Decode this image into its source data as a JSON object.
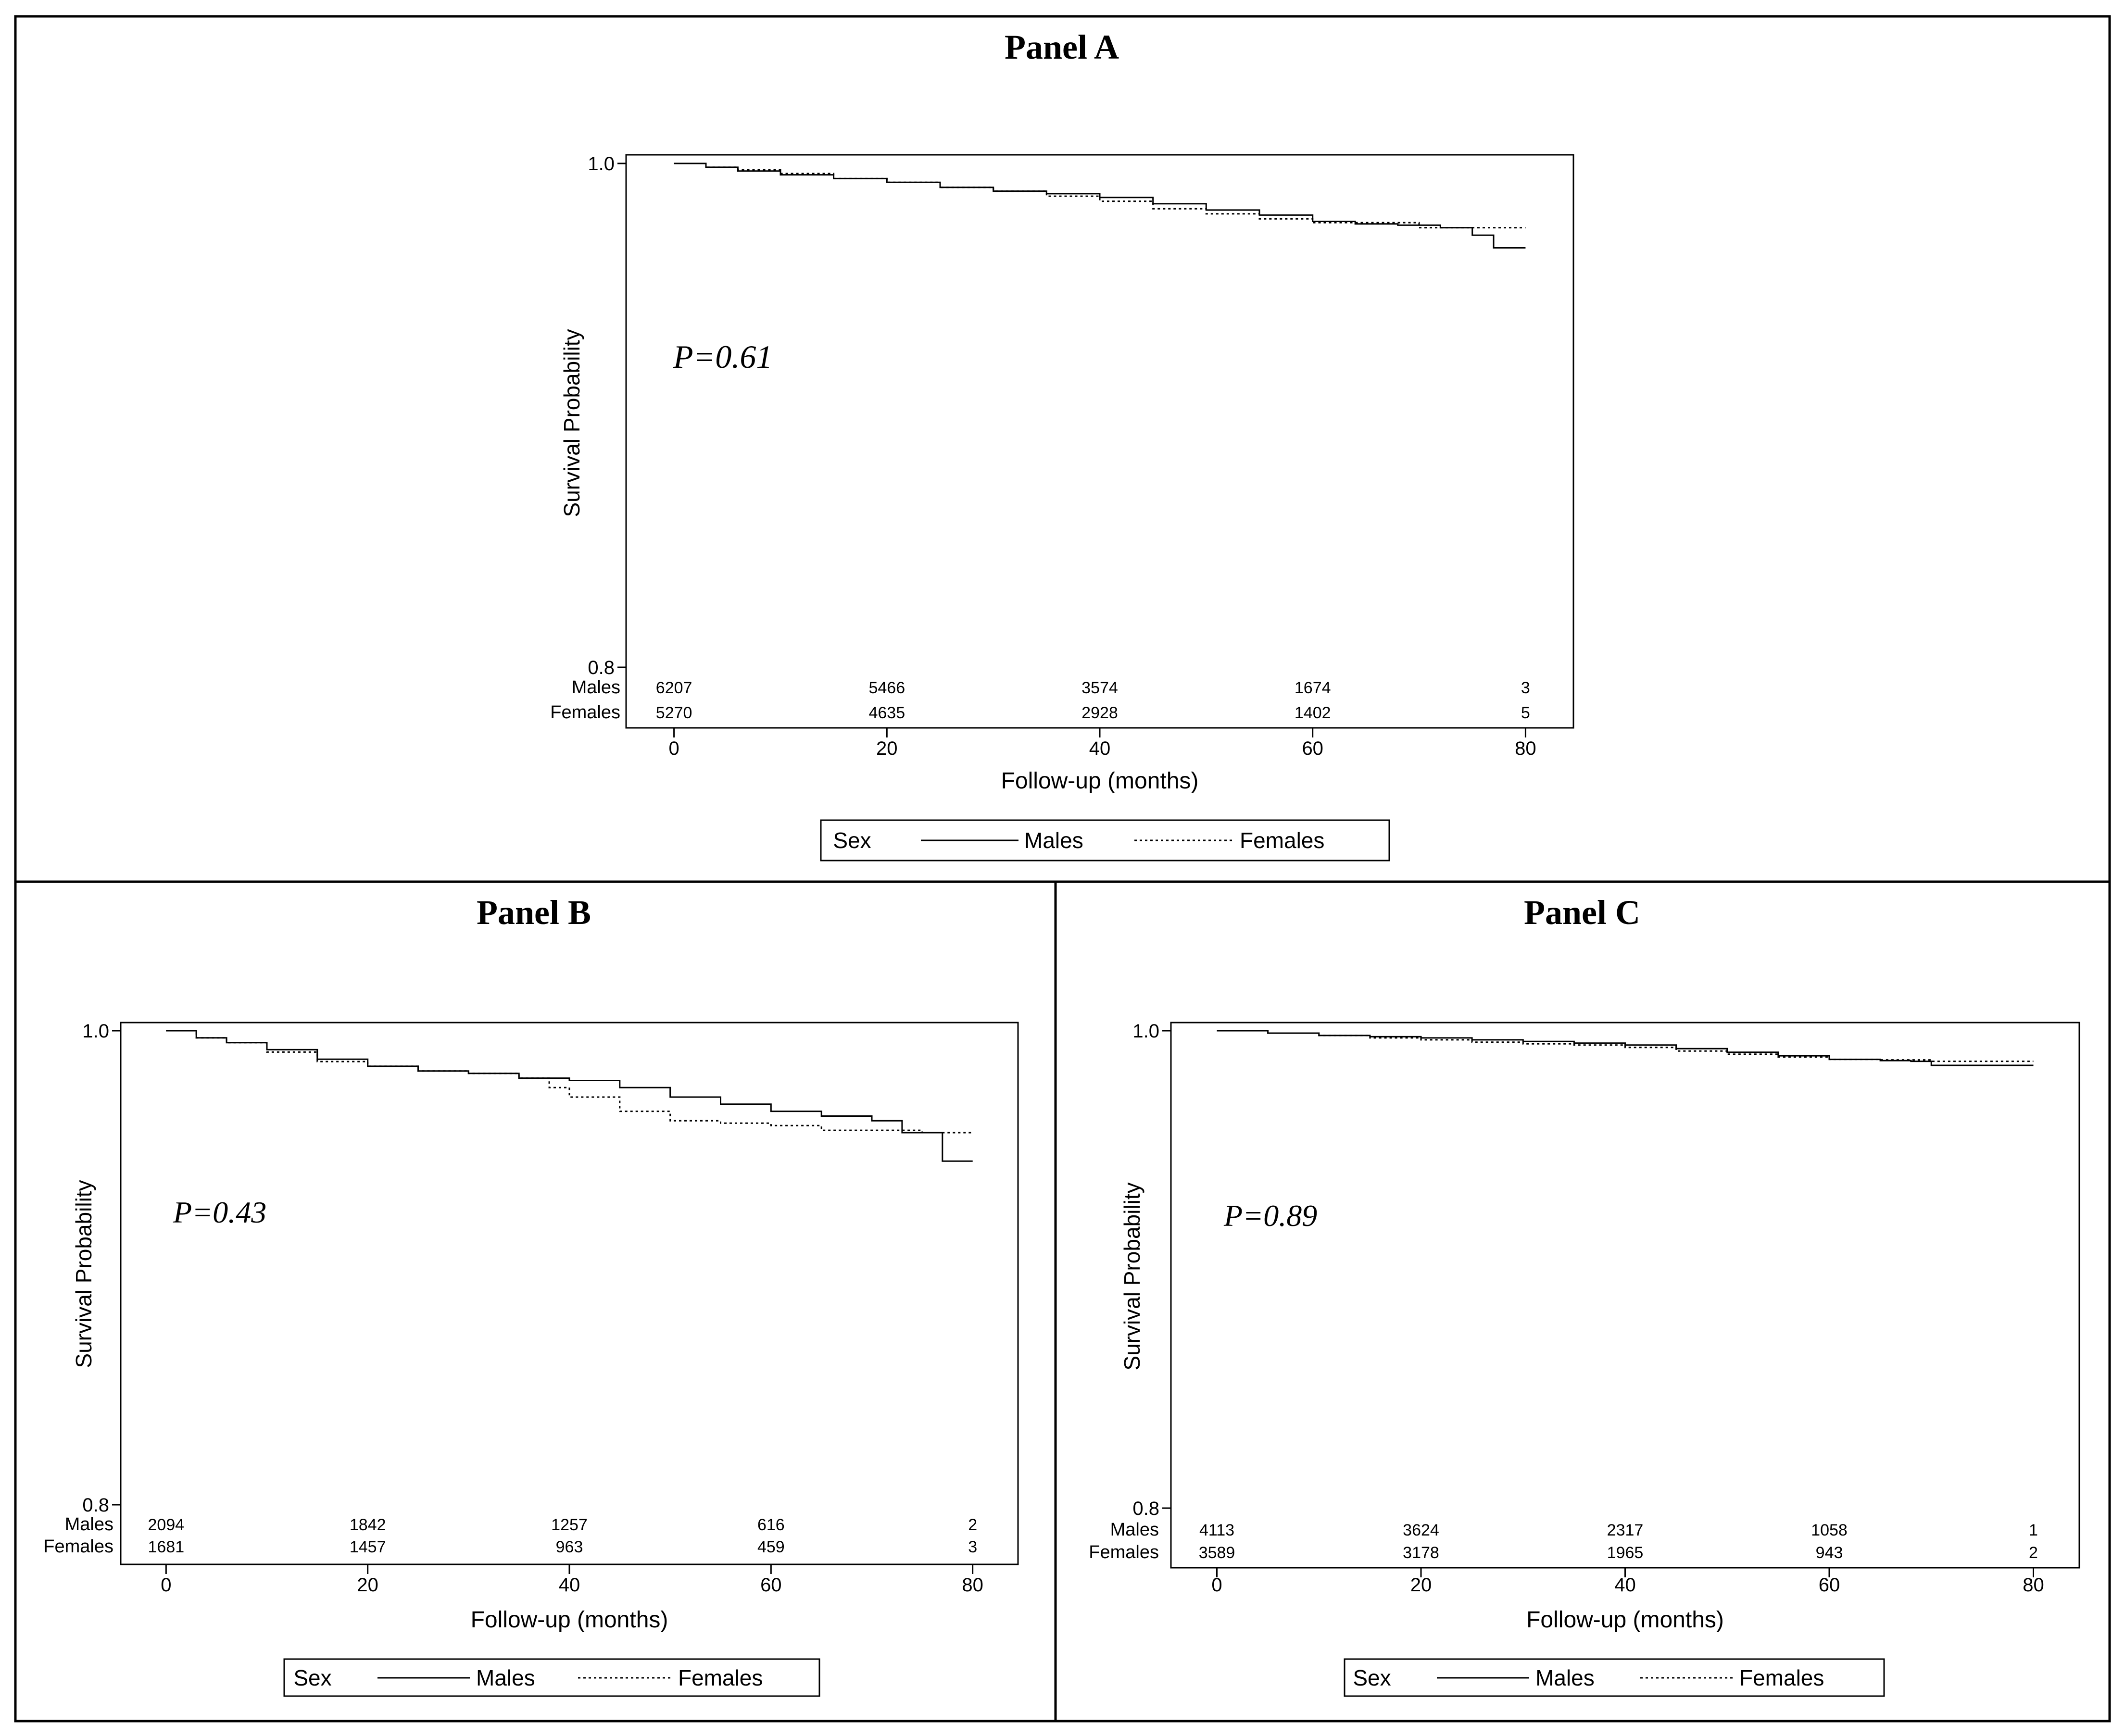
{
  "chart_data": [
    {
      "type": "line",
      "title": "Panel A",
      "xlabel": "Follow-up (months)",
      "ylabel": "Survival Probability",
      "xlim": [
        -4.5,
        84.5
      ],
      "ylim": [
        0.8,
        1.0
      ],
      "x_ticks": [
        0,
        20,
        40,
        60,
        80
      ],
      "x_tick_labels": [
        "0",
        "20",
        "40",
        "60",
        "80"
      ],
      "y_ticks": [
        0.8,
        1.0
      ],
      "y_tick_labels": [
        "0.8",
        "1.0"
      ],
      "annotation": "P=0.61",
      "grid": false,
      "legend": {
        "title": "Sex",
        "placement": "bottom",
        "entries": [
          "Males",
          "Females"
        ]
      },
      "risk_table": {
        "times": [
          0,
          20,
          40,
          60,
          80
        ],
        "rows": [
          {
            "label": "Males",
            "values": [
              "6207",
              "5466",
              "3574",
              "1674",
              "3"
            ]
          },
          {
            "label": "Females",
            "values": [
              "5270",
              "4635",
              "2928",
              "1402",
              "5"
            ]
          }
        ]
      },
      "series": [
        {
          "name": "Males",
          "style": "solid",
          "points": [
            [
              0,
              1.0
            ],
            [
              3,
              0.9985
            ],
            [
              6,
              0.997
            ],
            [
              10,
              0.9955
            ],
            [
              15,
              0.994
            ],
            [
              20,
              0.9925
            ],
            [
              25,
              0.9905
            ],
            [
              30,
              0.989
            ],
            [
              35,
              0.988
            ],
            [
              40,
              0.9865
            ],
            [
              45,
              0.984
            ],
            [
              50,
              0.9815
            ],
            [
              55,
              0.9795
            ],
            [
              60,
              0.977
            ],
            [
              64,
              0.976
            ],
            [
              68,
              0.9755
            ],
            [
              72,
              0.9745
            ],
            [
              75,
              0.9715
            ],
            [
              77,
              0.9715
            ],
            [
              77,
              0.9665
            ],
            [
              80,
              0.9665
            ]
          ]
        },
        {
          "name": "Females",
          "style": "dotted",
          "points": [
            [
              0,
              1.0
            ],
            [
              3,
              0.9985
            ],
            [
              6,
              0.9975
            ],
            [
              10,
              0.996
            ],
            [
              15,
              0.994
            ],
            [
              20,
              0.9925
            ],
            [
              25,
              0.9905
            ],
            [
              30,
              0.989
            ],
            [
              35,
              0.987
            ],
            [
              40,
              0.985
            ],
            [
              45,
              0.982
            ],
            [
              50,
              0.98
            ],
            [
              55,
              0.978
            ],
            [
              60,
              0.9765
            ],
            [
              65,
              0.9765
            ],
            [
              70,
              0.9745
            ],
            [
              75,
              0.9745
            ],
            [
              80,
              0.9745
            ]
          ]
        }
      ]
    },
    {
      "type": "line",
      "title": "Panel B",
      "xlabel": "Follow-up (months)",
      "ylabel": "Survival Probability",
      "xlim": [
        -4.5,
        84.5
      ],
      "ylim": [
        0.8,
        1.0
      ],
      "x_ticks": [
        0,
        20,
        40,
        60,
        80
      ],
      "x_tick_labels": [
        "0",
        "20",
        "40",
        "60",
        "80"
      ],
      "y_ticks": [
        0.8,
        1.0
      ],
      "y_tick_labels": [
        "0.8",
        "1.0"
      ],
      "annotation": "P=0.43",
      "grid": false,
      "legend": {
        "title": "Sex",
        "placement": "bottom",
        "entries": [
          "Males",
          "Females"
        ]
      },
      "risk_table": {
        "times": [
          0,
          20,
          40,
          60,
          80
        ],
        "rows": [
          {
            "label": "Males",
            "values": [
              "2094",
              "1842",
              "1257",
              "616",
              "2"
            ]
          },
          {
            "label": "Females",
            "values": [
              "1681",
              "1457",
              "963",
              "459",
              "3"
            ]
          }
        ]
      },
      "series": [
        {
          "name": "Males",
          "style": "solid",
          "points": [
            [
              0,
              1.0
            ],
            [
              3,
              0.997
            ],
            [
              6,
              0.995
            ],
            [
              10,
              0.992
            ],
            [
              15,
              0.988
            ],
            [
              20,
              0.985
            ],
            [
              25,
              0.983
            ],
            [
              30,
              0.982
            ],
            [
              35,
              0.98
            ],
            [
              40,
              0.979
            ],
            [
              45,
              0.976
            ],
            [
              50,
              0.972
            ],
            [
              55,
              0.969
            ],
            [
              60,
              0.966
            ],
            [
              65,
              0.964
            ],
            [
              70,
              0.962
            ],
            [
              72,
              0.962
            ],
            [
              73,
              0.957
            ],
            [
              77,
              0.957
            ],
            [
              77,
              0.945
            ],
            [
              80,
              0.945
            ]
          ]
        },
        {
          "name": "Females",
          "style": "dotted",
          "points": [
            [
              0,
              1.0
            ],
            [
              3,
              0.997
            ],
            [
              6,
              0.995
            ],
            [
              10,
              0.991
            ],
            [
              15,
              0.987
            ],
            [
              20,
              0.985
            ],
            [
              25,
              0.983
            ],
            [
              30,
              0.982
            ],
            [
              35,
              0.98
            ],
            [
              38,
              0.976
            ],
            [
              40,
              0.972
            ],
            [
              45,
              0.966
            ],
            [
              50,
              0.962
            ],
            [
              55,
              0.961
            ],
            [
              60,
              0.96
            ],
            [
              65,
              0.958
            ],
            [
              70,
              0.958
            ],
            [
              75,
              0.957
            ],
            [
              80,
              0.957
            ]
          ]
        }
      ]
    },
    {
      "type": "line",
      "title": "Panel C",
      "xlabel": "Follow-up (months)",
      "ylabel": "Survival Probability",
      "xlim": [
        -4.5,
        84.5
      ],
      "ylim": [
        0.8,
        1.0
      ],
      "x_ticks": [
        0,
        20,
        40,
        60,
        80
      ],
      "x_tick_labels": [
        "0",
        "20",
        "40",
        "60",
        "80"
      ],
      "y_ticks": [
        0.8,
        1.0
      ],
      "y_tick_labels": [
        "0.8",
        "1.0"
      ],
      "annotation": "P=0.89",
      "grid": false,
      "legend": {
        "title": "Sex",
        "placement": "bottom",
        "entries": [
          "Males",
          "Females"
        ]
      },
      "risk_table": {
        "times": [
          0,
          20,
          40,
          60,
          80
        ],
        "rows": [
          {
            "label": "Males",
            "values": [
              "4113",
              "3624",
              "2317",
              "1058",
              "1"
            ]
          },
          {
            "label": "Females",
            "values": [
              "3589",
              "3178",
              "1965",
              "943",
              "2"
            ]
          }
        ]
      },
      "series": [
        {
          "name": "Males",
          "style": "solid",
          "points": [
            [
              0,
              1.0
            ],
            [
              5,
              0.999
            ],
            [
              10,
              0.998
            ],
            [
              15,
              0.9975
            ],
            [
              20,
              0.997
            ],
            [
              25,
              0.9962
            ],
            [
              30,
              0.9955
            ],
            [
              35,
              0.9948
            ],
            [
              40,
              0.994
            ],
            [
              45,
              0.9925
            ],
            [
              50,
              0.991
            ],
            [
              55,
              0.9895
            ],
            [
              60,
              0.988
            ],
            [
              65,
              0.9875
            ],
            [
              68,
              0.9872
            ],
            [
              70,
              0.9855
            ],
            [
              75,
              0.9855
            ],
            [
              80,
              0.9855
            ]
          ]
        },
        {
          "name": "Females",
          "style": "dotted",
          "points": [
            [
              0,
              1.0
            ],
            [
              5,
              0.999
            ],
            [
              10,
              0.998
            ],
            [
              15,
              0.997
            ],
            [
              20,
              0.9962
            ],
            [
              25,
              0.9952
            ],
            [
              30,
              0.9945
            ],
            [
              35,
              0.994
            ],
            [
              40,
              0.993
            ],
            [
              45,
              0.9915
            ],
            [
              50,
              0.9902
            ],
            [
              55,
              0.989
            ],
            [
              60,
              0.988
            ],
            [
              65,
              0.9878
            ],
            [
              70,
              0.9872
            ],
            [
              75,
              0.9872
            ],
            [
              80,
              0.9872
            ]
          ]
        }
      ]
    }
  ]
}
